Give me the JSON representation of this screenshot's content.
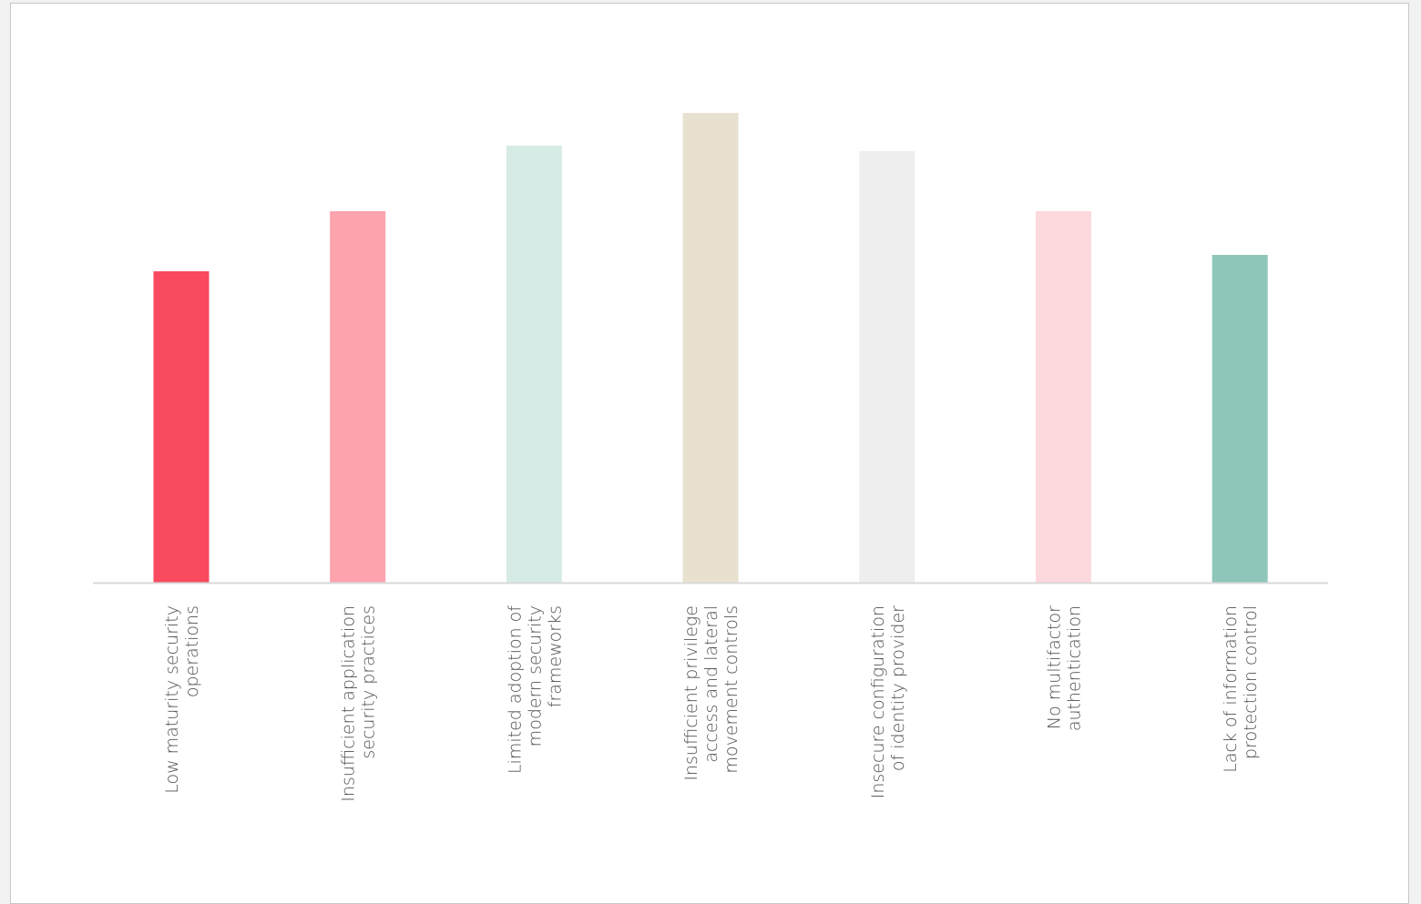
{
  "chart_data": {
    "type": "bar",
    "categories": [
      [
        "Low maturity security",
        "operations"
      ],
      [
        "Insufficient application",
        "security practices"
      ],
      [
        "Limited adoption of",
        "modern security",
        "frameworks"
      ],
      [
        "Insufficient privilege",
        "access and lateral",
        "movement controls"
      ],
      [
        "Insecure configuration",
        "of identity provider"
      ],
      [
        "No multifactor",
        "authentication"
      ],
      [
        "Lack of information",
        "protection control"
      ]
    ],
    "values": [
      57,
      68,
      80,
      86,
      79,
      68,
      60
    ],
    "colors": [
      "#f94a5f",
      "#fca3ae",
      "#d6ebe5",
      "#e8e1cf",
      "#eeeeee",
      "#fdd8dd",
      "#8ec6b9"
    ],
    "axis_color": "#d9d9d9",
    "ylim": [
      0,
      100
    ],
    "grid": false,
    "legend": "none",
    "title": "",
    "xlabel": "",
    "ylabel": ""
  }
}
